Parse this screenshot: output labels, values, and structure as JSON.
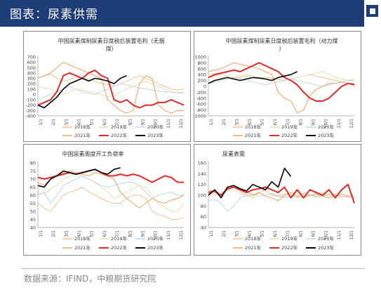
{
  "header": {
    "title": "图表：尿素供需"
  },
  "footer": {
    "source": "数据来源：IFIND，中粮期货研究院"
  },
  "colors": {
    "y2018": "#f2c48f",
    "y2019": "#e8ddb0",
    "y2020": "#bcd8e8",
    "y2021": "#f2a060",
    "y2022": "#e02b2b",
    "y2023": "#000000"
  },
  "chart_data": [
    {
      "type": "line",
      "title": "中国尿素煤制尿素日度税后装置毛利（无烟煤）",
      "x_ticks": [
        "1/1",
        "2/1",
        "3/1",
        "4/1",
        "5/1",
        "6/1",
        "7/1",
        "8/1",
        "9/1",
        "10/1",
        "11/1",
        "12/1"
      ],
      "ylim": [
        -400,
        700
      ],
      "y_ticks": [
        -400,
        -300,
        -200,
        -100,
        0,
        100,
        200,
        300,
        400,
        500,
        600,
        700
      ],
      "legend": [
        "2018年",
        "2019年",
        "2020年",
        "2021年",
        "2022年",
        "2023年"
      ],
      "series": [
        {
          "name": "2018年",
          "values": [
            300,
            350,
            380,
            300,
            250,
            280,
            320,
            300,
            280,
            250,
            200,
            180,
            150,
            200,
            250,
            300,
            350,
            300,
            250,
            200,
            150,
            100,
            80,
            100
          ]
        },
        {
          "name": "2019年",
          "values": [
            150,
            120,
            100,
            50,
            0,
            50,
            100,
            80,
            50,
            30,
            0,
            -50,
            -20,
            50,
            100,
            150,
            200,
            250,
            200,
            150,
            100,
            50,
            30,
            50
          ]
        },
        {
          "name": "2020年",
          "values": [
            -100,
            -50,
            0,
            50,
            100,
            150,
            100,
            50,
            20,
            0,
            50,
            100,
            150,
            200,
            180,
            150,
            120,
            100,
            80,
            60,
            50,
            40,
            30,
            20
          ]
        },
        {
          "name": "2021年",
          "values": [
            300,
            350,
            400,
            500,
            600,
            550,
            500,
            450,
            400,
            350,
            300,
            -100,
            -200,
            -300,
            -350,
            -300,
            200,
            350,
            300,
            -200,
            -300,
            -350,
            -300,
            -300
          ]
        },
        {
          "name": "2022年",
          "values": [
            -200,
            -150,
            -100,
            50,
            350,
            400,
            350,
            300,
            400,
            450,
            350,
            300,
            -100,
            -150,
            -100,
            -200,
            -250,
            -200,
            -200,
            -150,
            -150,
            -100,
            -150,
            -200
          ]
        },
        {
          "name": "2023年",
          "values": [
            -200,
            -250,
            -150,
            -50,
            100,
            200,
            250,
            300,
            250,
            300,
            280,
            250,
            200,
            300,
            350,
            null,
            null,
            null,
            null,
            null,
            null,
            null,
            null,
            null
          ]
        }
      ]
    },
    {
      "type": "line",
      "title": "中国尿素煤制尿素日度税后装置毛利（动力煤）",
      "x_ticks": [
        "1/1",
        "2/1",
        "3/1",
        "4/1",
        "5/1",
        "6/1",
        "7/1",
        "8/1",
        "9/1",
        "10/1",
        "11/1",
        "12/1"
      ],
      "ylim": [
        -1000,
        1000
      ],
      "y_ticks": [
        -1000,
        -800,
        -600,
        -400,
        -200,
        0,
        200,
        400,
        600,
        800,
        1000
      ],
      "legend": [
        "2018年",
        "2019年",
        "2020年",
        "2021年",
        "2022年",
        "2023年"
      ],
      "series": [
        {
          "name": "2018年",
          "values": [
            300,
            350,
            400,
            350,
            300,
            300,
            350,
            350,
            300,
            300,
            280,
            250,
            200,
            250,
            300,
            350,
            400,
            350,
            300,
            250,
            200,
            150,
            100,
            100
          ]
        },
        {
          "name": "2019年",
          "values": [
            400,
            450,
            400,
            350,
            300,
            350,
            400,
            350,
            300,
            250,
            200,
            150,
            200,
            250,
            300,
            350,
            400,
            450,
            500,
            400,
            300,
            250,
            200,
            250
          ]
        },
        {
          "name": "2020年",
          "values": [
            100,
            150,
            200,
            250,
            300,
            250,
            200,
            150,
            100,
            50,
            100,
            150,
            200,
            250,
            200,
            150,
            100,
            50,
            0,
            50,
            100,
            150,
            200,
            200
          ]
        },
        {
          "name": "2021年",
          "values": [
            500,
            550,
            600,
            700,
            800,
            750,
            700,
            650,
            600,
            500,
            400,
            -200,
            -400,
            -500,
            -900,
            -800,
            -300,
            -100,
            0,
            100,
            100,
            150,
            100,
            100
          ]
        },
        {
          "name": "2022年",
          "values": [
            300,
            400,
            450,
            500,
            550,
            500,
            600,
            700,
            800,
            700,
            600,
            500,
            300,
            200,
            50,
            -200,
            -400,
            -500,
            -500,
            -400,
            -200,
            0,
            100,
            50
          ]
        },
        {
          "name": "2023年",
          "values": [
            100,
            200,
            250,
            300,
            250,
            200,
            250,
            300,
            280,
            250,
            200,
            300,
            350,
            400,
            500,
            null,
            null,
            null,
            null,
            null,
            null,
            null,
            null,
            null
          ]
        }
      ]
    },
    {
      "type": "line",
      "title": "中国尿素周度开工负荷率",
      "x_ticks": [
        "1/1",
        "2/1",
        "3/1",
        "4/1",
        "5/1",
        "6/1",
        "7/1",
        "8/1",
        "9/1",
        "10/1",
        "11/1",
        "12/1"
      ],
      "ylim": [
        40,
        80
      ],
      "y_ticks": [
        40,
        45,
        50,
        55,
        60,
        65,
        70,
        75,
        80
      ],
      "legend": [
        "2018年",
        "2019年",
        "2020年",
        "2021年",
        "2022年",
        "2023年"
      ],
      "series": [
        {
          "name": "2018年",
          "values": [
            55,
            52,
            50,
            55,
            60,
            62,
            63,
            65,
            62,
            60,
            58,
            56,
            55,
            55,
            58,
            60,
            60,
            58,
            50,
            48,
            47,
            45,
            45,
            46
          ]
        },
        {
          "name": "2019年",
          "values": [
            62,
            60,
            64,
            66,
            70,
            72,
            73,
            72,
            70,
            68,
            65,
            62,
            58,
            60,
            62,
            64,
            66,
            65,
            60,
            55,
            52,
            50,
            50,
            55
          ]
        },
        {
          "name": "2020年",
          "values": [
            60,
            62,
            55,
            60,
            66,
            68,
            70,
            72,
            70,
            68,
            66,
            65,
            66,
            67,
            68,
            68,
            66,
            62,
            58,
            60,
            61,
            62,
            60,
            60
          ]
        },
        {
          "name": "2021年",
          "values": [
            68,
            66,
            70,
            72,
            74,
            75,
            74,
            73,
            72,
            74,
            73,
            72,
            70,
            62,
            58,
            55,
            52,
            55,
            58,
            56,
            55,
            57,
            58,
            60
          ]
        },
        {
          "name": "2022年",
          "values": [
            71,
            70,
            71,
            72,
            73,
            74,
            73,
            74,
            75,
            76,
            74,
            72,
            72,
            73,
            72,
            73,
            72,
            70,
            68,
            70,
            72,
            71,
            68,
            68
          ]
        },
        {
          "name": "2023年",
          "values": [
            66,
            65,
            70,
            72,
            75,
            74,
            73,
            74,
            75,
            76,
            74,
            73,
            76,
            77,
            null,
            null,
            null,
            null,
            null,
            null,
            null,
            null,
            null,
            null
          ]
        }
      ]
    },
    {
      "type": "line",
      "title": "尿素表需",
      "x_ticks": [
        "1/1",
        "2/1",
        "3/1",
        "4/1",
        "5/1",
        "6/1",
        "7/1",
        "8/1",
        "9/1",
        "10/1",
        "11/1",
        "12/1"
      ],
      "ylim": [
        40,
        160
      ],
      "y_ticks": [
        40,
        60,
        80,
        100,
        120,
        140,
        160
      ],
      "legend": [
        "2018年",
        "2019年",
        "2020年",
        "2021年",
        "2022年",
        "2023年"
      ],
      "series": [
        {
          "name": "2018年",
          "values": [
            100,
            105,
            98,
            110,
            115,
            108,
            100,
            95,
            105,
            110,
            100,
            98,
            102,
            100,
            95,
            105,
            100,
            98,
            100,
            102,
            100,
            98,
            96,
            100
          ]
        },
        {
          "name": "2019年",
          "values": [
            95,
            100,
            105,
            108,
            110,
            105,
            98,
            100,
            106,
            108,
            102,
            100,
            96,
            100,
            104,
            100,
            98,
            102,
            105,
            100,
            98,
            96,
            100,
            100
          ]
        },
        {
          "name": "2020年",
          "values": [
            90,
            92,
            85,
            70,
            80,
            95,
            100,
            102,
            98,
            100,
            104,
            98,
            95,
            98,
            100,
            102,
            100,
            96,
            98,
            100,
            102,
            98,
            96,
            100
          ]
        },
        {
          "name": "2021年",
          "values": [
            110,
            105,
            100,
            115,
            118,
            112,
            108,
            100,
            105,
            98,
            95,
            90,
            100,
            105,
            98,
            96,
            100,
            102,
            98,
            95,
            100,
            102,
            98,
            96
          ]
        },
        {
          "name": "2022年",
          "values": [
            105,
            108,
            100,
            112,
            115,
            110,
            105,
            110,
            112,
            115,
            110,
            105,
            115,
            95,
            110,
            95,
            110,
            105,
            100,
            110,
            95,
            110,
            120,
            85
          ]
        },
        {
          "name": "2023年",
          "values": [
            100,
            110,
            95,
            115,
            118,
            112,
            108,
            120,
            115,
            110,
            125,
            115,
            150,
            135,
            null,
            null,
            null,
            null,
            null,
            null,
            null,
            null,
            null,
            null
          ]
        }
      ]
    }
  ]
}
